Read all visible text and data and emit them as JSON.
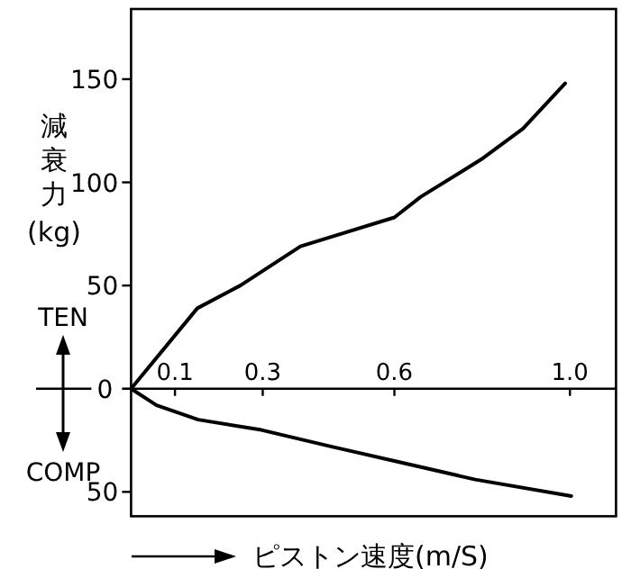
{
  "chart_data": {
    "type": "line",
    "xlabel": "ピストン速度(m/S)",
    "ylabel": "減衰力(kg)",
    "xlim": [
      0,
      1.105
    ],
    "ylim": [
      -61.8,
      184
    ],
    "xticks": [
      0.1,
      0.3,
      0.6,
      {
        "value": 1,
        "label": "1.0"
      }
    ],
    "yticks": [
      {
        "value": -50,
        "label": "50"
      },
      0,
      50,
      100,
      150
    ],
    "marker": "none",
    "line_style": "solid",
    "annotations": [
      "TEN",
      "COMP"
    ],
    "series": [
      {
        "color": "#000000",
        "x": [
          0,
          0.151,
          0.249,
          0.386,
          0.6,
          0.66,
          0.797,
          0.893,
          0.989
        ],
        "values": [
          0,
          39,
          50,
          69,
          83,
          93,
          111,
          126,
          148
        ]
      },
      {
        "color": "#000000",
        "x": [
          0,
          0.058,
          0.153,
          0.297,
          0.455,
          0.6,
          0.784,
          1.003
        ],
        "values": [
          0,
          -8,
          -15,
          -20,
          -28,
          -35,
          -44,
          -52
        ]
      }
    ]
  }
}
